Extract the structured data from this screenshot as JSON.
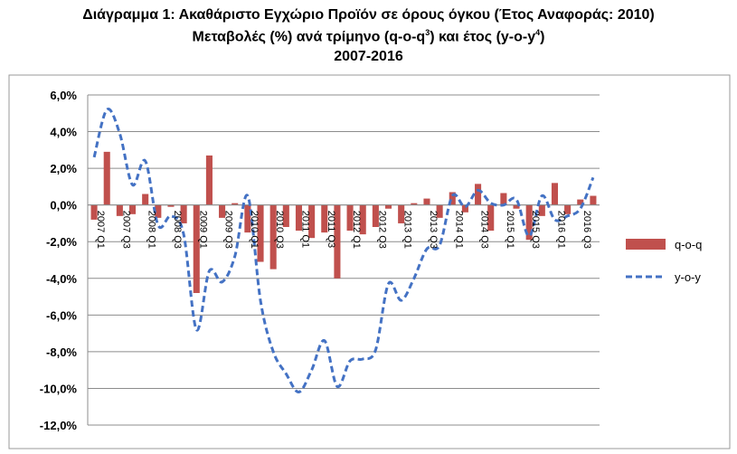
{
  "title": {
    "line1": "Διάγραμμα 1: Ακαθάριστο Εγχώριο Προϊόν σε όρους όγκου (Έτος Αναφοράς: 2010)",
    "line2_a": "Μεταβολές (%) ανά τρίμηνο (q-o-q",
    "line2_sup1": "3",
    "line2_b": ") και έτος (y-o-y",
    "line2_sup2": "4",
    "line2_c": ")",
    "line3": "2007-2016"
  },
  "chart_data": {
    "type": "bar",
    "categories": [
      "2007Q1",
      "2007Q2",
      "2007Q3",
      "2007Q4",
      "2008Q1",
      "2008Q2",
      "2008Q3",
      "2008Q4",
      "2009Q1",
      "2009Q2",
      "2009Q3",
      "2009Q4",
      "2010Q1",
      "2010Q2",
      "2010Q3",
      "2010Q4",
      "2011Q1",
      "2011Q2",
      "2011Q3",
      "2011Q4",
      "2012Q1",
      "2012Q2",
      "2012Q3",
      "2012Q4",
      "2013Q1",
      "2013Q2",
      "2013Q3",
      "2013Q4",
      "2014Q1",
      "2014Q2",
      "2014Q3",
      "2014Q4",
      "2015Q1",
      "2015Q2",
      "2015Q3",
      "2015Q4",
      "2016Q1",
      "2016Q2",
      "2016Q3",
      "2016Q4"
    ],
    "tick_labels": [
      "2007Q1",
      "2007Q3",
      "2008Q1",
      "2008Q3",
      "2009Q1",
      "2009Q3",
      "2010Q1",
      "2010Q3",
      "2011Q1",
      "2011Q3",
      "2012Q1",
      "2012Q3",
      "2013Q1",
      "2013Q3",
      "2014Q1",
      "2014Q3",
      "2015Q1",
      "2015Q3",
      "2016Q1",
      "2016Q3"
    ],
    "series": [
      {
        "name": "q-o-q",
        "type": "bar",
        "values": [
          -0.8,
          2.9,
          -0.6,
          -0.5,
          0.6,
          -0.7,
          -0.1,
          -1.0,
          -4.8,
          2.7,
          -0.7,
          0.1,
          -1.5,
          -3.1,
          -3.5,
          -1.2,
          -1.4,
          -1.8,
          -1.5,
          -4.0,
          -1.4,
          -1.6,
          -1.2,
          -0.2,
          -1.0,
          0.1,
          0.35,
          -0.7,
          0.7,
          -0.4,
          1.15,
          -1.4,
          0.65,
          -0.2,
          -1.9,
          -0.6,
          1.2,
          -0.5,
          0.3,
          0.5
        ]
      },
      {
        "name": "y-o-y",
        "type": "line",
        "values": [
          2.6,
          5.2,
          3.9,
          1.1,
          2.4,
          -1.1,
          -0.6,
          -1.6,
          -6.8,
          -3.6,
          -4.2,
          -2.8,
          0.5,
          -5.2,
          -8.0,
          -9.2,
          -10.2,
          -9.0,
          -7.4,
          -9.9,
          -8.5,
          -8.4,
          -7.9,
          -4.3,
          -5.2,
          -4.0,
          -2.4,
          -2.2,
          0.5,
          -0.1,
          0.8,
          0.1,
          0.0,
          0.3,
          -1.7,
          0.5,
          -0.8,
          -0.6,
          -0.2,
          1.5
        ]
      }
    ],
    "ylim": [
      -12.0,
      6.0
    ],
    "ytick_step": 2.0,
    "ytick_format": "percent_1dp",
    "grid": true,
    "legend_position": "right",
    "colors": {
      "q-o-q": "#c0504d",
      "y-o-y": "#4472c4"
    }
  }
}
